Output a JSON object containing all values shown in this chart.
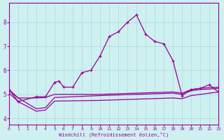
{
  "main_x": [
    0,
    1,
    3,
    4,
    5,
    5.5,
    6,
    7,
    8,
    9,
    10,
    11,
    12,
    13,
    14,
    15,
    16,
    17,
    18,
    19,
    20,
    21,
    22,
    23
  ],
  "main_y": [
    5.2,
    4.7,
    4.9,
    4.9,
    5.5,
    5.55,
    5.3,
    5.3,
    5.9,
    6.0,
    6.6,
    7.4,
    7.6,
    8.0,
    8.3,
    7.5,
    7.2,
    7.1,
    6.4,
    4.95,
    5.2,
    5.25,
    5.4,
    5.1
  ],
  "flat1_x": [
    0,
    1,
    3,
    4,
    5,
    10,
    14,
    18,
    19,
    20,
    21,
    22,
    23
  ],
  "flat1_y": [
    5.2,
    4.85,
    4.85,
    4.87,
    5.0,
    5.0,
    5.05,
    5.1,
    5.05,
    5.2,
    5.25,
    5.28,
    5.3
  ],
  "flat2_x": [
    0,
    1,
    3,
    4,
    5,
    10,
    14,
    18,
    19,
    20,
    21,
    22,
    23
  ],
  "flat2_y": [
    5.15,
    4.85,
    4.4,
    4.45,
    4.87,
    4.95,
    5.0,
    5.05,
    5.0,
    5.15,
    5.2,
    5.22,
    5.25
  ],
  "flat3_x": [
    0,
    1,
    3,
    4,
    5,
    10,
    14,
    18,
    19,
    20,
    21,
    22,
    23
  ],
  "flat3_y": [
    5.05,
    4.7,
    4.3,
    4.35,
    4.72,
    4.75,
    4.8,
    4.85,
    4.82,
    4.95,
    5.0,
    5.05,
    5.1
  ],
  "line_color": "#990099",
  "bg_color": "#cff0f0",
  "grid_color": "#a8dada",
  "xlabel": "Windchill (Refroidissement éolien,°C)",
  "ylim": [
    3.75,
    8.8
  ],
  "xlim": [
    0,
    23
  ],
  "yticks": [
    4,
    5,
    6,
    7,
    8
  ],
  "xticks": [
    0,
    1,
    2,
    3,
    4,
    5,
    6,
    7,
    8,
    9,
    10,
    11,
    12,
    13,
    14,
    15,
    16,
    17,
    18,
    19,
    20,
    21,
    22,
    23
  ]
}
